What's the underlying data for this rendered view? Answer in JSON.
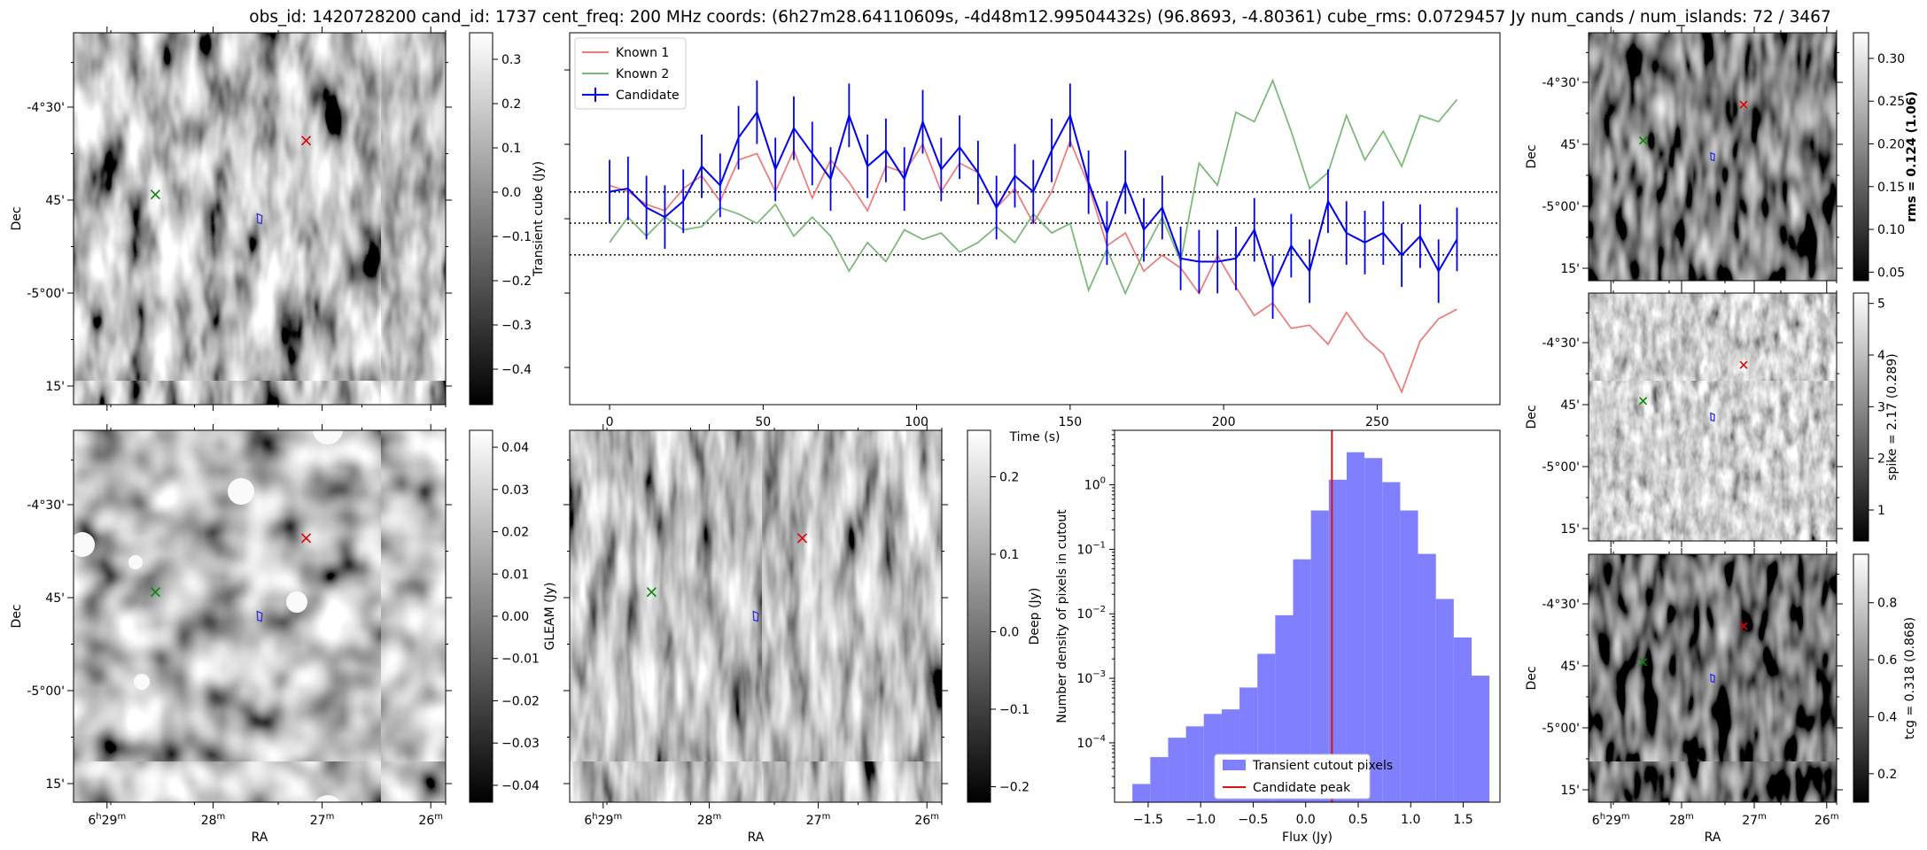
{
  "figure_title": "obs_id: 1420728200 cand_id: 1737 cent_freq: 200 MHz coords: (6h27m28.64110609s, -4d48m12.99504432s) (96.8693, -4.80361) cube_rms: 0.0729457 Jy num_cands / num_islands: 72 / 3467",
  "map_axes": {
    "ra_label": "RA",
    "dec_label": "Dec",
    "ra_ticks": [
      {
        "h": "6",
        "hsup": "h",
        "m": "29",
        "msup": "m"
      },
      {
        "h": "",
        "hsup": "",
        "m": "28",
        "msup": "m"
      },
      {
        "h": "",
        "hsup": "",
        "m": "27",
        "msup": "m"
      },
      {
        "h": "",
        "hsup": "",
        "m": "26",
        "msup": "m"
      }
    ],
    "dec_ticks": [
      "-4°30'",
      "45'",
      "-5°00'",
      "15'"
    ]
  },
  "panels": {
    "transient": {
      "colorbar_label": "Transient cube (Jy)",
      "colorbar_ticks": [
        "0.3",
        "0.2",
        "0.1",
        "0.0",
        "−0.1",
        "−0.2",
        "−0.3",
        "−0.4"
      ],
      "colorbar_range": [
        -0.48,
        0.36
      ]
    },
    "gleam": {
      "colorbar_label": "GLEAM (Jy)",
      "colorbar_ticks": [
        "0.04",
        "0.03",
        "0.02",
        "0.01",
        "0.00",
        "−0.01",
        "−0.02",
        "−0.03",
        "−0.04"
      ],
      "colorbar_range": [
        -0.044,
        0.044
      ]
    },
    "deep": {
      "colorbar_label": "Deep (Jy)",
      "colorbar_ticks": [
        "0.2",
        "0.1",
        "0.0",
        "−0.1",
        "−0.2"
      ],
      "colorbar_range": [
        -0.22,
        0.26
      ]
    },
    "rms": {
      "colorbar_label": "rms = 0.124 (1.06)",
      "colorbar_ticks": [
        "0.30",
        "0.25",
        "0.20",
        "0.15",
        "0.10",
        "0.05"
      ],
      "colorbar_range": [
        0.04,
        0.33
      ]
    },
    "spike": {
      "colorbar_label": "spike = 2.17 (0.289)",
      "colorbar_ticks": [
        "5",
        "4",
        "3",
        "2",
        "1"
      ],
      "colorbar_range": [
        0.4,
        5.2
      ]
    },
    "tcg": {
      "colorbar_label": "tcg = 0.318 (0.868)",
      "colorbar_ticks": [
        "0.8",
        "0.6",
        "0.4",
        "0.2"
      ],
      "colorbar_range": [
        0.1,
        0.97
      ]
    }
  },
  "chart_data": [
    {
      "type": "line",
      "xlabel": "Time (s)",
      "xlim": [
        -13,
        290
      ],
      "ylim": [
        -0.57,
        0.6
      ],
      "xticks": [
        0,
        50,
        100,
        150,
        200,
        250
      ],
      "legend_position": "top-left",
      "hlines": [
        0.099,
        0.001,
        -0.099
      ],
      "x": [
        0,
        6,
        12,
        18,
        24,
        30,
        36,
        42,
        48,
        54,
        60,
        66,
        72,
        78,
        84,
        90,
        96,
        102,
        108,
        114,
        120,
        126,
        132,
        138,
        144,
        150,
        156,
        162,
        168,
        174,
        180,
        186,
        192,
        198,
        204,
        210,
        216,
        222,
        228,
        234,
        240,
        246,
        252,
        258,
        264,
        270,
        276
      ],
      "series": [
        {
          "name": "Known 1",
          "color": "#f07878",
          "values": [
            0.12,
            0.1,
            0.06,
            0.04,
            0.11,
            0.15,
            0.07,
            0.2,
            0.22,
            0.1,
            0.23,
            0.08,
            0.2,
            0.13,
            0.04,
            0.18,
            0.16,
            0.25,
            0.1,
            0.19,
            0.16,
            0.05,
            0.11,
            0.0,
            0.1,
            0.26,
            0.12,
            -0.07,
            -0.03,
            -0.15,
            -0.1,
            -0.14,
            -0.22,
            -0.1,
            -0.2,
            -0.29,
            -0.25,
            -0.33,
            -0.32,
            -0.38,
            -0.28,
            -0.36,
            -0.41,
            -0.53,
            -0.37,
            -0.3,
            -0.27
          ]
        },
        {
          "name": "Known 2",
          "color": "#74b874",
          "values": [
            -0.06,
            0.02,
            -0.04,
            0.02,
            -0.02,
            -0.01,
            0.05,
            0.03,
            0.0,
            0.06,
            -0.04,
            0.02,
            -0.04,
            -0.15,
            -0.06,
            -0.12,
            -0.02,
            -0.05,
            -0.03,
            -0.09,
            -0.06,
            -0.01,
            -0.06,
            0.03,
            -0.03,
            0.0,
            -0.21,
            -0.08,
            -0.22,
            -0.09,
            0.02,
            -0.12,
            0.19,
            0.12,
            0.35,
            0.32,
            0.45,
            0.29,
            0.11,
            0.16,
            0.34,
            0.2,
            0.29,
            0.18,
            0.34,
            0.32,
            0.39
          ]
        },
        {
          "name": "Candidate",
          "color": "#0000f0",
          "values": [
            0.1,
            0.11,
            0.05,
            0.02,
            0.07,
            0.18,
            0.12,
            0.27,
            0.35,
            0.17,
            0.3,
            0.22,
            0.14,
            0.34,
            0.18,
            0.23,
            0.14,
            0.32,
            0.17,
            0.24,
            0.16,
            0.05,
            0.15,
            0.1,
            0.23,
            0.34,
            0.13,
            -0.03,
            0.13,
            -0.02,
            0.05,
            -0.11,
            -0.12,
            -0.12,
            -0.11,
            -0.02,
            -0.2,
            -0.07,
            -0.15,
            0.07,
            -0.03,
            -0.06,
            -0.03,
            -0.1,
            -0.04,
            -0.15,
            -0.05
          ],
          "errors": [
            0.1,
            0.1,
            0.1,
            0.1,
            0.1,
            0.1,
            0.1,
            0.1,
            0.1,
            0.1,
            0.1,
            0.1,
            0.1,
            0.1,
            0.1,
            0.1,
            0.1,
            0.1,
            0.1,
            0.1,
            0.1,
            0.1,
            0.1,
            0.1,
            0.1,
            0.1,
            0.1,
            0.1,
            0.1,
            0.1,
            0.1,
            0.1,
            0.1,
            0.1,
            0.1,
            0.1,
            0.1,
            0.1,
            0.1,
            0.1,
            0.1,
            0.1,
            0.1,
            0.1,
            0.1,
            0.1,
            0.1
          ]
        }
      ]
    },
    {
      "type": "bar",
      "xlabel": "Flux (Jy)",
      "ylabel": "Number density of pixels in cutout",
      "yscale": "log",
      "xlim": [
        -1.82,
        1.85
      ],
      "ylim": [
        1.2e-05,
        7
      ],
      "xticks": [
        "−1.5",
        "−1.0",
        "−0.5",
        "0.0",
        "0.5",
        "1.0",
        "1.5"
      ],
      "xtick_values": [
        -1.5,
        -1.0,
        -0.5,
        0.0,
        0.5,
        1.0,
        1.5
      ],
      "ytick_values": [
        0.0001,
        0.001,
        0.01,
        0.1,
        1
      ],
      "legend_position": "bottom-center",
      "bin_edges": [
        -1.65,
        -1.48,
        -1.31,
        -1.14,
        -0.97,
        -0.8,
        -0.63,
        -0.46,
        -0.29,
        -0.12,
        0.05,
        0.22,
        0.39,
        0.56,
        0.73,
        0.9,
        1.07,
        1.24,
        1.41,
        1.58,
        1.75
      ],
      "values": [
        2.3e-05,
        6e-05,
        0.00012,
        0.00018,
        0.00028,
        0.00033,
        0.00072,
        0.0024,
        0.0095,
        0.07,
        0.4,
        1.2,
        3.2,
        2.6,
        1.1,
        0.4,
        0.085,
        0.017,
        0.0043,
        0.0011
      ],
      "series_name": "Transient cutout pixels",
      "bar_color": "#8080ff",
      "marker_line": {
        "name": "Candidate peak",
        "x": 0.25,
        "color": "#dd1111"
      }
    }
  ]
}
